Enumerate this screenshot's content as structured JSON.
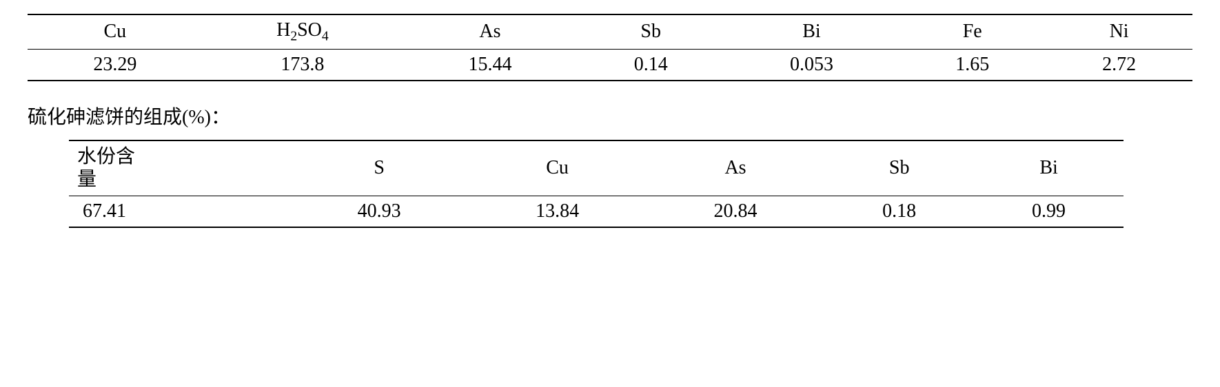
{
  "table1": {
    "type": "table",
    "columns": [
      "Cu",
      "H2SO4",
      "As",
      "Sb",
      "Bi",
      "Fe",
      "Ni"
    ],
    "rows": [
      [
        "23.29",
        "173.8",
        "15.44",
        "0.14",
        "0.053",
        "1.65",
        "2.72"
      ]
    ],
    "border_color": "#000000",
    "background_color": "#ffffff",
    "text_color": "#000000",
    "header_fontsize": 28,
    "cell_fontsize": 28,
    "border_top_width": 2,
    "border_mid_width": 1.5,
    "border_bottom_width": 2
  },
  "caption": "硫化砷滤饼的组成(%)：",
  "table2": {
    "type": "table",
    "columns": [
      "水份含量",
      "S",
      "Cu",
      "As",
      "Sb",
      "Bi"
    ],
    "col0_line1": "水份含",
    "col0_line2": "量",
    "rows": [
      [
        "67.41",
        "40.93",
        "13.84",
        "20.84",
        "0.18",
        "0.99"
      ]
    ],
    "border_color": "#000000",
    "background_color": "#ffffff",
    "text_color": "#000000",
    "header_fontsize": 28,
    "cell_fontsize": 28,
    "border_top_width": 2,
    "border_mid_width": 1.5,
    "border_bottom_width": 2
  }
}
